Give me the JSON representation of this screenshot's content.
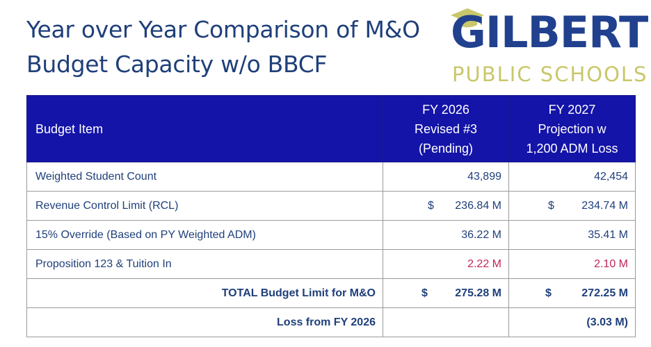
{
  "title": {
    "line1": "Year over Year Comparison of M&O",
    "line2": "Budget Capacity w/o BBCF"
  },
  "logo": {
    "main": "GILBERT",
    "sub": "PUBLIC SCHOOLS",
    "icon": "graduation-cap-icon",
    "colors": {
      "main": "#21418e",
      "sub": "#c9c76a",
      "cap": "#c9c76a"
    }
  },
  "table": {
    "headers": {
      "item": "Budget Item",
      "fy2026": [
        "FY 2026",
        "Revised #3",
        "(Pending)"
      ],
      "fy2027": [
        "FY 2027",
        "Projection w",
        "1,200 ADM Loss"
      ]
    },
    "rows": [
      {
        "label": "Weighted Student Count",
        "fy2026_dollar": "",
        "fy2026": "43,899",
        "fy2027_dollar": "",
        "fy2027": "42,454"
      },
      {
        "label": "Revenue Control Limit (RCL)",
        "fy2026_dollar": "$",
        "fy2026": "236.84 M",
        "fy2027_dollar": "$",
        "fy2027": "234.74 M"
      },
      {
        "label": "15% Override (Based on PY Weighted ADM)",
        "fy2026_dollar": "",
        "fy2026": "36.22 M",
        "fy2027_dollar": "",
        "fy2027": "35.41 M"
      },
      {
        "label": "Proposition 123 & Tuition In",
        "fy2026_dollar": "",
        "fy2026": "2.22 M",
        "fy2027_dollar": "",
        "fy2027": "2.10 M"
      }
    ],
    "total": {
      "label": "TOTAL Budget Limit for M&O",
      "fy2026_dollar": "$",
      "fy2026": "275.28 M",
      "fy2027_dollar": "$",
      "fy2027": "272.25 M"
    },
    "loss": {
      "label": "Loss from FY 2026",
      "fy2026": "",
      "fy2027": "(3.03 M)"
    },
    "colors": {
      "header_bg": "#1414a8",
      "text": "#1f3f7a",
      "highlight": "#c0245b"
    }
  }
}
